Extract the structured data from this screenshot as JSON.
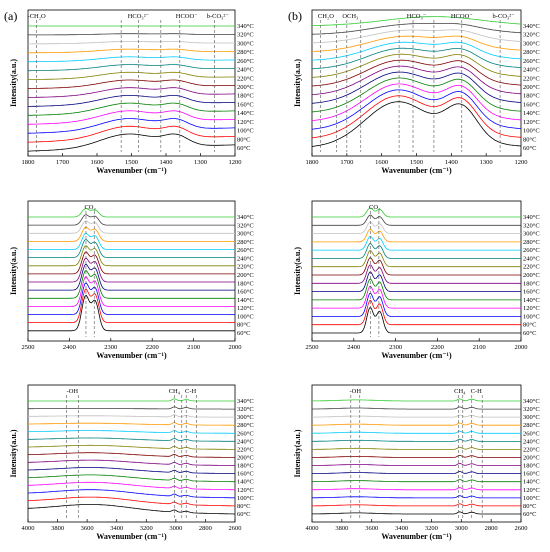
{
  "figure": {
    "panel_labels": [
      "(a)",
      "(b)"
    ]
  },
  "series_colors": [
    "#000000",
    "#ff0000",
    "#0000ff",
    "#ff00ff",
    "#008000",
    "#000080",
    "#800080",
    "#800000",
    "#808000",
    "#008080",
    "#00ccff",
    "#ff9900",
    "#c0c0c0",
    "#404040",
    "#33cc33"
  ],
  "chart_data": [
    {
      "panel": "(a)",
      "row": 1,
      "type": "line",
      "xlabel": "Wavenumber (cm⁻¹)",
      "ylabel": "Intensity(a.u.)",
      "xlim": [
        1800,
        1200
      ],
      "x_ticks": [
        1800,
        1700,
        1600,
        1500,
        1400,
        1300,
        1200
      ],
      "series": [
        "60°C",
        "80°C",
        "100°C",
        "120°C",
        "140°C",
        "160°C",
        "180°C",
        "200°C",
        "220°C",
        "240°C",
        "260°C",
        "280°C",
        "300°C",
        "320°C",
        "340°C"
      ],
      "peak_markers": [
        1775,
        1530,
        1480,
        1415,
        1360,
        1260
      ],
      "annotations": [
        {
          "text": "-CH₂O",
          "x": 1775
        },
        {
          "text": "HCO₃²⁻",
          "x": 1480
        },
        {
          "text": "HCOO⁻",
          "x": 1340
        },
        {
          "text": "b-CO₃²⁻",
          "x": 1250
        }
      ]
    },
    {
      "panel": "(a)",
      "row": 2,
      "type": "line",
      "xlabel": "Wavenumber (cm⁻¹)",
      "ylabel": "Intensity(a.u.)",
      "xlim": [
        2500,
        2000
      ],
      "x_ticks": [
        2500,
        2400,
        2300,
        2200,
        2100,
        2000
      ],
      "series": [
        "60°C",
        "80°C",
        "100°C",
        "120°C",
        "140°C",
        "160°C",
        "180°C",
        "200°C",
        "220°C",
        "240°C",
        "260°C",
        "280°C",
        "300°C",
        "320°C",
        "340°C"
      ],
      "peak_markers": [
        2360,
        2340
      ],
      "annotations": [
        {
          "text": "CO₂",
          "x": 2350
        }
      ]
    },
    {
      "panel": "(a)",
      "row": 3,
      "type": "line",
      "xlabel": "Wavenumber (cm⁻¹)",
      "ylabel": "Intensity(a.u.)",
      "xlim": [
        4000,
        2600
      ],
      "x_ticks": [
        4000,
        3800,
        3600,
        3400,
        3200,
        3000,
        2800,
        2600
      ],
      "series": [
        "60°C",
        "80°C",
        "100°C",
        "120°C",
        "140°C",
        "160°C",
        "180°C",
        "200°C",
        "220°C",
        "240°C",
        "260°C",
        "280°C",
        "300°C",
        "320°C",
        "340°C"
      ],
      "peak_markers": [
        3740,
        3660,
        3010,
        2960,
        2930,
        2860
      ],
      "annotations": [
        {
          "text": "-OH",
          "x": 3700
        },
        {
          "text": "CH₄",
          "x": 3010
        },
        {
          "text": "C-H",
          "x": 2900
        }
      ]
    },
    {
      "panel": "(b)",
      "row": 1,
      "type": "line",
      "xlabel": "Wavenumber (cm⁻¹)",
      "ylabel": "Intensity(a.u.)",
      "xlim": [
        1800,
        1200
      ],
      "x_ticks": [
        1800,
        1700,
        1600,
        1500,
        1400,
        1300,
        1200
      ],
      "series": [
        "60°C",
        "80°C",
        "100°C",
        "120°C",
        "140°C",
        "160°C",
        "180°C",
        "200°C",
        "220°C",
        "240°C",
        "260°C",
        "280°C",
        "300°C",
        "320°C",
        "340°C"
      ],
      "peak_markers": [
        1775,
        1730,
        1700,
        1660,
        1550,
        1510,
        1450,
        1370,
        1260
      ],
      "annotations": [
        {
          "text": "CH₂O",
          "x": 1760
        },
        {
          "text": "OCH₃",
          "x": 1690
        },
        {
          "text": "HCO₃⁻",
          "x": 1500
        },
        {
          "text": "HCOO⁻",
          "x": 1370
        },
        {
          "text": "b-CO₃²⁻",
          "x": 1250
        }
      ]
    },
    {
      "panel": "(b)",
      "row": 2,
      "type": "line",
      "xlabel": "Wavenumber (cm⁻¹)",
      "ylabel": "Intensity(a.u.)",
      "xlim": [
        2500,
        2000
      ],
      "x_ticks": [
        2500,
        2400,
        2300,
        2200,
        2100,
        2000
      ],
      "series": [
        "60°C",
        "80°C",
        "100°C",
        "120°C",
        "140°C",
        "160°C",
        "180°C",
        "200°C",
        "220°C",
        "240°C",
        "260°C",
        "280°C",
        "300°C",
        "320°C",
        "340°C"
      ],
      "peak_markers": [
        2360,
        2340
      ],
      "annotations": [
        {
          "text": "CO₂",
          "x": 2350
        }
      ]
    },
    {
      "panel": "(b)",
      "row": 3,
      "type": "line",
      "xlabel": "Wavenumber (cm⁻¹)",
      "ylabel": "Intensity(a.u.)",
      "xlim": [
        4000,
        2600
      ],
      "x_ticks": [
        4000,
        3800,
        3600,
        3400,
        3200,
        3000,
        2800,
        2600
      ],
      "series": [
        "60°C",
        "80°C",
        "100°C",
        "120°C",
        "140°C",
        "160°C",
        "180°C",
        "200°C",
        "220°C",
        "240°C",
        "260°C",
        "280°C",
        "300°C",
        "320°C",
        "340°C"
      ],
      "peak_markers": [
        3740,
        3680,
        3020,
        2990,
        2930,
        2860
      ],
      "annotations": [
        {
          "text": "-OH",
          "x": 3710
        },
        {
          "text": "CH₄",
          "x": 3010
        },
        {
          "text": "C-H",
          "x": 2900
        }
      ]
    }
  ]
}
